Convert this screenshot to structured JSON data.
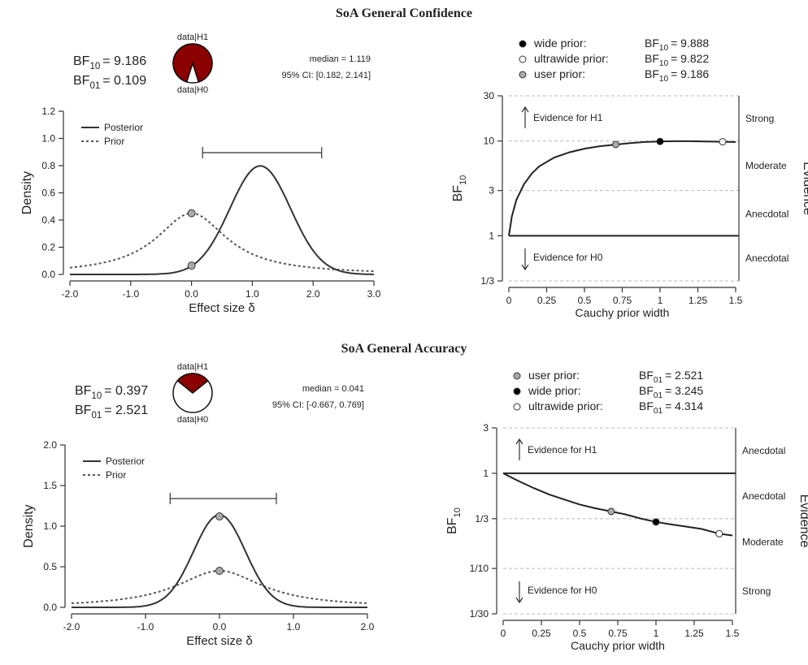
{
  "sections": [
    {
      "title": "SoA General Confidence"
    },
    {
      "title": "SoA General Accuracy"
    }
  ],
  "colors": {
    "pie_h1": "#8b0000",
    "pie_h0": "#ffffff",
    "user_point": "#aaaaaa",
    "wide_point": "#000000",
    "ultrawide_point": "#ffffff"
  },
  "chart_data": [
    {
      "type": "line",
      "id": "confidence_posterior",
      "bf": {
        "bf10_label": "BF",
        "bf10_sub": "10",
        "bf10_value": "= 9.186",
        "bf01_label": "BF",
        "bf01_sub": "01",
        "bf01_value": "= 0.109"
      },
      "pie": {
        "top_label": "data|H1",
        "bottom_label": "data|H0",
        "p_h1": 0.902
      },
      "summary": {
        "median": "median = 1.119",
        "ci": "95% CI: [0.182, 2.141]"
      },
      "ci_interval": [
        0.182,
        2.141
      ],
      "xlabel": "Effect size δ",
      "ylabel": "Density",
      "xlim": [
        -2.0,
        3.0
      ],
      "ylim": [
        0.0,
        1.2
      ],
      "xticks": [
        "-2.0",
        "-1.0",
        "0.0",
        "1.0",
        "2.0",
        "3.0"
      ],
      "xtick_values": [
        -2,
        -1,
        0,
        1,
        2,
        3
      ],
      "yticks": [
        "0.0",
        "0.2",
        "0.4",
        "0.6",
        "0.8",
        "1.0",
        "1.2"
      ],
      "ytick_values": [
        0,
        0.2,
        0.4,
        0.6,
        0.8,
        1.0,
        1.2
      ],
      "legend": [
        "Posterior",
        "Prior"
      ],
      "posterior": {
        "mean": 1.13,
        "sd": 0.5
      },
      "prior": {
        "scale": 0.707
      },
      "points": [
        {
          "x": 0.0,
          "y": 0.45,
          "name": "prior-at-zero"
        },
        {
          "x": 0.0,
          "y": 0.065,
          "name": "posterior-at-zero"
        }
      ]
    },
    {
      "type": "line",
      "id": "confidence_robustness",
      "legend_entries": [
        {
          "marker": "wide",
          "label": "wide prior:",
          "bf_label": "BF",
          "bf_sub": "10",
          "bf_value": "= 9.888"
        },
        {
          "marker": "ultrawide",
          "label": "ultrawide prior:",
          "bf_label": "BF",
          "bf_sub": "10",
          "bf_value": "= 9.822"
        },
        {
          "marker": "user",
          "label": "user prior:",
          "bf_label": "BF",
          "bf_sub": "10",
          "bf_value": "= 9.186"
        }
      ],
      "xlabel": "Cauchy prior width",
      "ylabel": "BF",
      "ylabel_sub": "10",
      "right_label": "Evidence",
      "xlim": [
        0,
        1.5
      ],
      "xticks": [
        "0",
        "0.25",
        "0.5",
        "0.75",
        "1",
        "1.25",
        "1.5"
      ],
      "xtick_values": [
        0,
        0.25,
        0.5,
        0.75,
        1,
        1.25,
        1.5
      ],
      "yticks": [
        "1/3",
        "1",
        "3",
        "10",
        "30"
      ],
      "ytick_values": [
        0.3333,
        1,
        3,
        10,
        30
      ],
      "ylim": [
        0.3333,
        30
      ],
      "evidence_h1": "Evidence for H1",
      "evidence_h0": "Evidence for H0",
      "evidence_labels": [
        {
          "text": "Strong",
          "bf": 17.3
        },
        {
          "text": "Moderate",
          "bf": 5.5
        },
        {
          "text": "Anecdotal",
          "bf": 1.7
        },
        {
          "text": "Anecdotal",
          "bf": 0.58
        }
      ],
      "curve": {
        "x": [
          0,
          0.02,
          0.05,
          0.1,
          0.15,
          0.2,
          0.3,
          0.4,
          0.5,
          0.6,
          0.71,
          0.8,
          0.9,
          1.0,
          1.1,
          1.2,
          1.3,
          1.41,
          1.5
        ],
        "y": [
          1,
          1.6,
          2.4,
          3.5,
          4.5,
          5.4,
          6.7,
          7.6,
          8.3,
          8.8,
          9.186,
          9.5,
          9.75,
          9.888,
          9.95,
          9.95,
          9.9,
          9.822,
          9.75
        ]
      },
      "points": [
        {
          "x": 0.707,
          "y": 9.186,
          "marker": "user"
        },
        {
          "x": 1.0,
          "y": 9.888,
          "marker": "wide"
        },
        {
          "x": 1.414,
          "y": 9.822,
          "marker": "ultrawide"
        }
      ]
    },
    {
      "type": "line",
      "id": "accuracy_posterior",
      "bf": {
        "bf10_label": "BF",
        "bf10_sub": "10",
        "bf10_value": "= 0.397",
        "bf01_label": "BF",
        "bf01_sub": "01",
        "bf01_value": "= 2.521"
      },
      "pie": {
        "top_label": "data|H1",
        "bottom_label": "data|H0",
        "p_h1": 0.284
      },
      "summary": {
        "median": "median = 0.041",
        "ci": "95% CI: [-0.667, 0.769]"
      },
      "ci_interval": [
        -0.667,
        0.769
      ],
      "xlabel": "Effect size δ",
      "ylabel": "Density",
      "xlim": [
        -2.0,
        2.0
      ],
      "ylim": [
        0.0,
        2.0
      ],
      "xticks": [
        "-2.0",
        "-1.0",
        "0.0",
        "1.0",
        "2.0"
      ],
      "xtick_values": [
        -2,
        -1,
        0,
        1,
        2
      ],
      "yticks": [
        "0.0",
        "0.5",
        "1.0",
        "1.5",
        "2.0"
      ],
      "ytick_values": [
        0,
        0.5,
        1.0,
        1.5,
        2.0
      ],
      "legend": [
        "Posterior",
        "Prior"
      ],
      "posterior": {
        "mean": 0.0,
        "sd": 0.35
      },
      "prior": {
        "scale": 0.707
      },
      "points": [
        {
          "x": 0.0,
          "y": 1.12,
          "name": "posterior-at-zero"
        },
        {
          "x": 0.0,
          "y": 0.45,
          "name": "prior-at-zero"
        }
      ]
    },
    {
      "type": "line",
      "id": "accuracy_robustness",
      "legend_entries": [
        {
          "marker": "user",
          "label": "user prior:",
          "bf_label": "BF",
          "bf_sub": "01",
          "bf_value": "= 2.521"
        },
        {
          "marker": "wide",
          "label": "wide prior:",
          "bf_label": "BF",
          "bf_sub": "01",
          "bf_value": "= 3.245"
        },
        {
          "marker": "ultrawide",
          "label": "ultrawide prior:",
          "bf_label": "BF",
          "bf_sub": "01",
          "bf_value": "= 4.314"
        }
      ],
      "xlabel": "Cauchy prior width",
      "ylabel": "BF",
      "ylabel_sub": "10",
      "right_label": "Evidence",
      "xlim": [
        0,
        1.5
      ],
      "xticks": [
        "0",
        "0.25",
        "0.5",
        "0.75",
        "1",
        "1.25",
        "1.5"
      ],
      "xtick_values": [
        0,
        0.25,
        0.5,
        0.75,
        1,
        1.25,
        1.5
      ],
      "yticks": [
        "1/30",
        "1/10",
        "1/3",
        "1",
        "3"
      ],
      "ytick_values": [
        0.03333,
        0.1,
        0.3333,
        1,
        3
      ],
      "ylim": [
        0.03333,
        3
      ],
      "evidence_h1": "Evidence for H1",
      "evidence_h0": "Evidence for H0",
      "evidence_labels": [
        {
          "text": "Anecdotal",
          "bf": 1.73
        },
        {
          "text": "Anecdotal",
          "bf": 0.577
        },
        {
          "text": "Moderate",
          "bf": 0.19
        },
        {
          "text": "Strong",
          "bf": 0.058
        }
      ],
      "curve": {
        "x": [
          0,
          0.1,
          0.2,
          0.3,
          0.4,
          0.5,
          0.6,
          0.707,
          0.8,
          0.9,
          1.0,
          1.1,
          1.2,
          1.3,
          1.414,
          1.5
        ],
        "y": [
          1,
          0.83,
          0.7,
          0.6,
          0.53,
          0.47,
          0.43,
          0.397,
          0.37,
          0.335,
          0.308,
          0.29,
          0.275,
          0.26,
          0.232,
          0.222
        ]
      },
      "points": [
        {
          "x": 0.707,
          "y": 0.397,
          "marker": "user"
        },
        {
          "x": 1.0,
          "y": 0.308,
          "marker": "wide"
        },
        {
          "x": 1.414,
          "y": 0.232,
          "marker": "ultrawide"
        }
      ]
    }
  ]
}
